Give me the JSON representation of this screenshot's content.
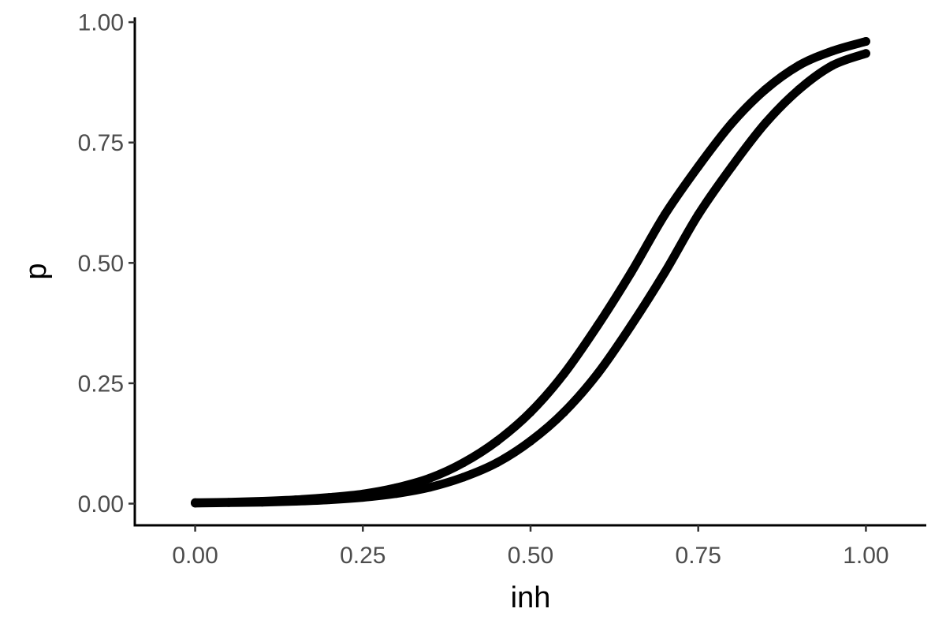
{
  "chart_data": {
    "type": "line",
    "title": "",
    "xlabel": "inh",
    "ylabel": "p",
    "xlim": [
      -0.09,
      1.09
    ],
    "ylim": [
      -0.045,
      1.01
    ],
    "x_ticks": [
      0,
      0.25,
      0.5,
      0.75,
      1
    ],
    "x_tick_labels": [
      "0.00",
      "0.25",
      "0.50",
      "0.75",
      "1.00"
    ],
    "y_ticks": [
      0,
      0.25,
      0.5,
      0.75,
      1
    ],
    "y_tick_labels": [
      "0.00",
      "0.25",
      "0.50",
      "0.75",
      "1.00"
    ],
    "grid": false,
    "legend": "none",
    "color": "#000000",
    "x": [
      0,
      0.05,
      0.1,
      0.15,
      0.2,
      0.25,
      0.3,
      0.35,
      0.4,
      0.45,
      0.5,
      0.55,
      0.6,
      0.65,
      0.7,
      0.75,
      0.8,
      0.85,
      0.9,
      0.95,
      1.0
    ],
    "series": [
      {
        "values": [
          0.002,
          0.003,
          0.005,
          0.008,
          0.013,
          0.02,
          0.033,
          0.053,
          0.085,
          0.13,
          0.19,
          0.27,
          0.37,
          0.48,
          0.6,
          0.7,
          0.79,
          0.86,
          0.91,
          0.94,
          0.96
        ]
      },
      {
        "values": [
          0.001,
          0.002,
          0.003,
          0.005,
          0.008,
          0.013,
          0.021,
          0.034,
          0.055,
          0.085,
          0.13,
          0.19,
          0.27,
          0.37,
          0.48,
          0.6,
          0.7,
          0.79,
          0.86,
          0.91,
          0.935
        ]
      }
    ]
  }
}
